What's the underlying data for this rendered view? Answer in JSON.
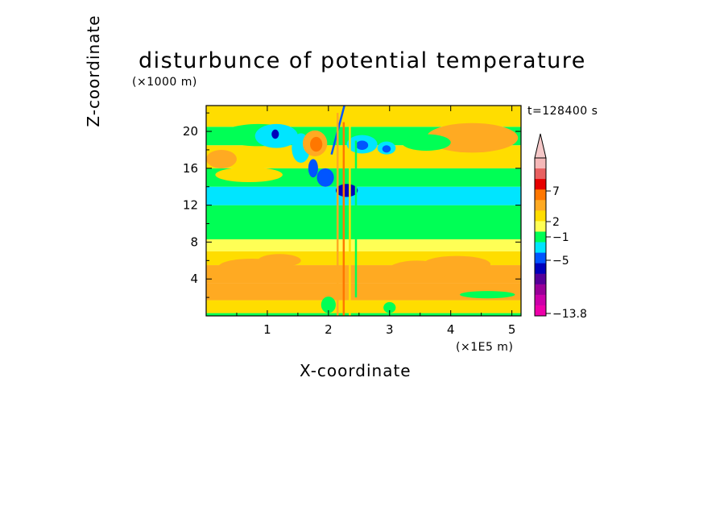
{
  "chart_data": {
    "type": "heatmap",
    "title": "disturbunce of potential temperature",
    "xlabel": "X-coordinate",
    "ylabel": "Z-coordinate",
    "x_unit_label": "(×1E5 m)",
    "z_unit_label": "(×1000 m)",
    "time_label": "t=128400 s",
    "xlim": [
      0,
      5.15
    ],
    "ylim": [
      0,
      22.8
    ],
    "x_ticks": [
      "1",
      "2",
      "3",
      "4",
      "5"
    ],
    "x_tick_values": [
      1,
      2,
      3,
      4,
      5
    ],
    "y_ticks": [
      "4",
      "8",
      "12",
      "16",
      "20"
    ],
    "y_tick_values": [
      4,
      8,
      12,
      16,
      20
    ],
    "colorbar": {
      "labels": [
        "7",
        "2",
        "−1",
        "−5",
        "−13.8"
      ],
      "label_levels": [
        7,
        2,
        -1,
        -5,
        -13.8
      ],
      "colors_top_to_bottom": [
        "#f5b8b8",
        "#e86060",
        "#e60000",
        "#ff7700",
        "#ffaa22",
        "#ffdd00",
        "#ffff55",
        "#00ff55",
        "#00e5ff",
        "#0055ff",
        "#0000bb",
        "#550099",
        "#990099",
        "#cc00aa",
        "#ee00aa"
      ],
      "extends_above": true
    },
    "bands": [
      {
        "z": [
          0,
          0.3
        ],
        "color": "#00ff55"
      },
      {
        "z": [
          0.3,
          1.7
        ],
        "color": "#ffdd00"
      },
      {
        "z": [
          1.7,
          3.5
        ],
        "color": "#ffaa22"
      },
      {
        "z": [
          3.5,
          5.5
        ],
        "color": "#ffaa22"
      },
      {
        "z": [
          5.5,
          7.0
        ],
        "color": "#ffdd00"
      },
      {
        "z": [
          7.0,
          8.3
        ],
        "color": "#ffff55"
      },
      {
        "z": [
          8.3,
          12.0
        ],
        "color": "#00ff55"
      },
      {
        "z": [
          12.0,
          14.0
        ],
        "color": "#00e5ff"
      },
      {
        "z": [
          14.0,
          16.0
        ],
        "color": "#00ff55"
      },
      {
        "z": [
          16.0,
          18.5
        ],
        "color": "#ffdd00"
      },
      {
        "z": [
          18.5,
          20.5
        ],
        "color": "#00ff55"
      },
      {
        "z": [
          20.5,
          22.8
        ],
        "color": "#ffdd00"
      }
    ],
    "blobs": [
      {
        "x": 0.75,
        "z": 5.3,
        "rx": 0.55,
        "rz": 0.9,
        "color": "#ffaa22"
      },
      {
        "x": 1.2,
        "z": 6.0,
        "rx": 0.35,
        "rz": 0.7,
        "color": "#ffaa22"
      },
      {
        "x": 3.45,
        "z": 4.8,
        "rx": 0.5,
        "rz": 1.2,
        "color": "#ffaa22"
      },
      {
        "x": 4.1,
        "z": 5.6,
        "rx": 0.55,
        "rz": 0.9,
        "color": "#ffaa22"
      },
      {
        "x": 4.6,
        "z": 2.3,
        "rx": 0.45,
        "rz": 0.4,
        "color": "#00ff55"
      },
      {
        "x": 2.0,
        "z": 1.2,
        "rx": 0.12,
        "rz": 0.9,
        "color": "#00ff55"
      },
      {
        "x": 3.0,
        "z": 0.9,
        "rx": 0.1,
        "rz": 0.6,
        "color": "#00ff55"
      },
      {
        "x": 0.85,
        "z": 19.6,
        "rx": 0.6,
        "rz": 1.2,
        "color": "#00ff55"
      },
      {
        "x": 1.15,
        "z": 19.5,
        "rx": 0.35,
        "rz": 1.3,
        "color": "#00e5ff"
      },
      {
        "x": 1.13,
        "z": 19.7,
        "rx": 0.06,
        "rz": 0.5,
        "color": "#0000bb"
      },
      {
        "x": 1.55,
        "z": 18.2,
        "rx": 0.15,
        "rz": 1.6,
        "color": "#00e5ff"
      },
      {
        "x": 1.78,
        "z": 18.7,
        "rx": 0.2,
        "rz": 1.4,
        "color": "#ffaa22"
      },
      {
        "x": 1.8,
        "z": 18.6,
        "rx": 0.1,
        "rz": 0.8,
        "color": "#ff7700"
      },
      {
        "x": 1.75,
        "z": 16.0,
        "rx": 0.08,
        "rz": 1.0,
        "color": "#0055ff"
      },
      {
        "x": 1.95,
        "z": 15.0,
        "rx": 0.14,
        "rz": 1.0,
        "color": "#0055ff"
      },
      {
        "x": 2.3,
        "z": 13.6,
        "rx": 0.18,
        "rz": 0.7,
        "color": "#0000bb"
      },
      {
        "x": 2.55,
        "z": 18.6,
        "rx": 0.25,
        "rz": 1.0,
        "color": "#00e5ff"
      },
      {
        "x": 2.55,
        "z": 18.5,
        "rx": 0.1,
        "rz": 0.5,
        "color": "#0055ff"
      },
      {
        "x": 2.95,
        "z": 18.2,
        "rx": 0.15,
        "rz": 0.7,
        "color": "#00e5ff"
      },
      {
        "x": 2.95,
        "z": 18.1,
        "rx": 0.07,
        "rz": 0.4,
        "color": "#0055ff"
      },
      {
        "x": 4.35,
        "z": 19.3,
        "rx": 0.75,
        "rz": 1.6,
        "color": "#ffaa22"
      },
      {
        "x": 3.6,
        "z": 18.8,
        "rx": 0.4,
        "rz": 0.9,
        "color": "#00ff55"
      },
      {
        "x": 0.25,
        "z": 17.0,
        "rx": 0.25,
        "rz": 1.0,
        "color": "#ffaa22"
      },
      {
        "x": 0.7,
        "z": 15.3,
        "rx": 0.55,
        "rz": 0.8,
        "color": "#ffdd00"
      }
    ],
    "streaks": [
      {
        "x": 2.05,
        "z0": 17.5,
        "z1": 22.8,
        "color": "#0055ff"
      },
      {
        "x": 2.15,
        "z0": 0.0,
        "z1": 22.0,
        "color": "#ffaa22"
      },
      {
        "x": 2.25,
        "z0": 0.0,
        "z1": 21.0,
        "color": "#ff7700"
      },
      {
        "x": 2.35,
        "z0": 0.0,
        "z1": 20.5,
        "color": "#ffdd00"
      },
      {
        "x": 2.45,
        "z0": 2.0,
        "z1": 19.0,
        "color": "#00ff55"
      }
    ]
  }
}
